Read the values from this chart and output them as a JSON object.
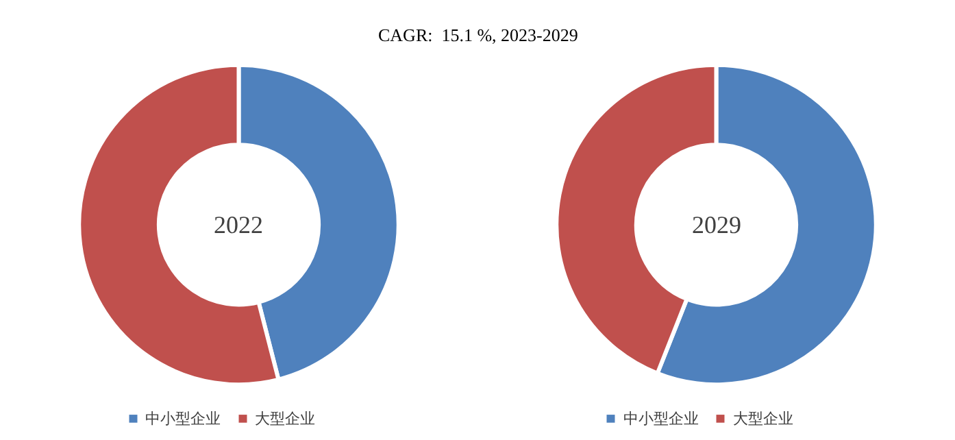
{
  "chart_data": [
    {
      "type": "donut",
      "title": "CAGR:  15.1 %, 2023-2029",
      "categories": [
        "中小型企业",
        "大型企业"
      ],
      "values": [
        46,
        54
      ],
      "colors": [
        "#4f81bd",
        "#c0504d"
      ],
      "annotations": [
        "2022"
      ],
      "legend": "bottom"
    },
    {
      "type": "donut",
      "categories": [
        "中小型企业",
        "大型企业"
      ],
      "values": [
        56,
        44
      ],
      "colors": [
        "#4f81bd",
        "#c0504d"
      ],
      "annotations": [
        "2029"
      ],
      "legend": "bottom"
    }
  ]
}
